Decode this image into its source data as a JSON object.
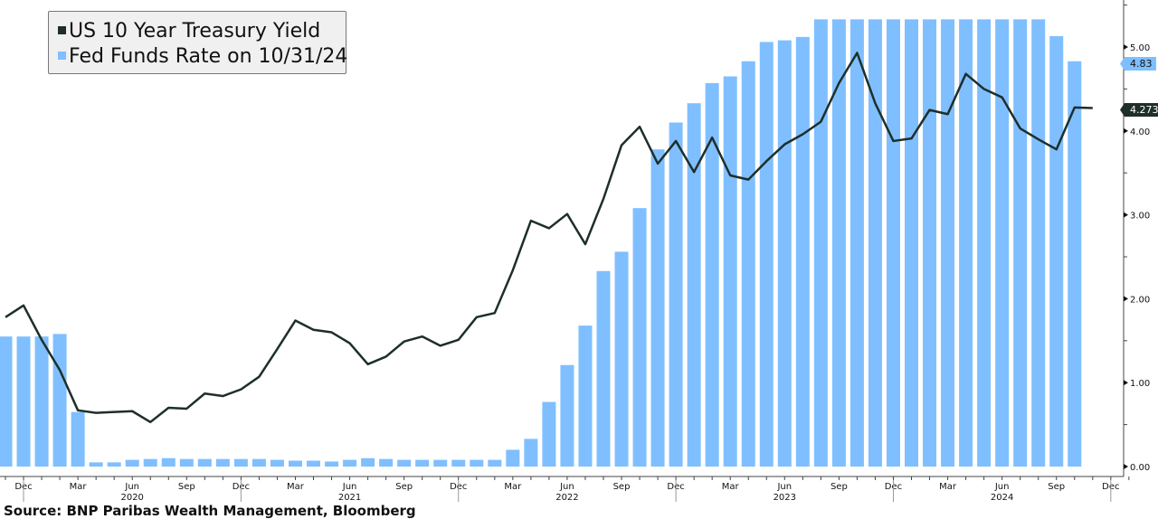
{
  "legend": {
    "line_label": "US 10 Year Treasury Yield",
    "bar_label": "Fed Funds Rate on 10/31/24"
  },
  "source": "Source: BNP Paribas Wealth Management, Bloomberg",
  "colors": {
    "line": "#1e2f2a",
    "bar": "#7fbfff",
    "axis": "#555555"
  },
  "last_values": {
    "bar": "4.83",
    "line": "4.2732"
  },
  "chart_data": {
    "type": "bar+line",
    "start_month": "Nov 2019",
    "frequency": "monthly",
    "ylim": [
      0,
      5.5
    ],
    "y_ticks": [
      "0.00",
      "1.00",
      "2.00",
      "3.00",
      "4.00",
      "5.00"
    ],
    "x_tick_labels": [
      {
        "month_index": 1,
        "label": "Dec"
      },
      {
        "month_index": 4,
        "label": "Mar"
      },
      {
        "month_index": 7,
        "label": "Jun"
      },
      {
        "month_index": 10,
        "label": "Sep"
      },
      {
        "month_index": 13,
        "label": "Dec"
      },
      {
        "month_index": 16,
        "label": "Mar"
      },
      {
        "month_index": 19,
        "label": "Jun"
      },
      {
        "month_index": 22,
        "label": "Sep"
      },
      {
        "month_index": 25,
        "label": "Dec"
      },
      {
        "month_index": 28,
        "label": "Mar"
      },
      {
        "month_index": 31,
        "label": "Jun"
      },
      {
        "month_index": 34,
        "label": "Sep"
      },
      {
        "month_index": 37,
        "label": "Dec"
      },
      {
        "month_index": 40,
        "label": "Mar"
      },
      {
        "month_index": 43,
        "label": "Jun"
      },
      {
        "month_index": 46,
        "label": "Sep"
      },
      {
        "month_index": 49,
        "label": "Dec"
      },
      {
        "month_index": 52,
        "label": "Mar"
      },
      {
        "month_index": 55,
        "label": "Jun"
      },
      {
        "month_index": 58,
        "label": "Sep"
      },
      {
        "month_index": 61,
        "label": "Dec"
      }
    ],
    "year_labels": [
      {
        "month_index": 7,
        "label": "2020"
      },
      {
        "month_index": 19,
        "label": "2021"
      },
      {
        "month_index": 31,
        "label": "2022"
      },
      {
        "month_index": 43,
        "label": "2023"
      },
      {
        "month_index": 55,
        "label": "2024"
      }
    ],
    "series": [
      {
        "name": "Fed Funds Rate on 10/31/24",
        "kind": "bar",
        "values": [
          1.55,
          1.55,
          1.55,
          1.58,
          0.65,
          0.05,
          0.05,
          0.08,
          0.09,
          0.1,
          0.09,
          0.09,
          0.09,
          0.09,
          0.09,
          0.08,
          0.07,
          0.07,
          0.06,
          0.08,
          0.1,
          0.09,
          0.08,
          0.08,
          0.08,
          0.08,
          0.08,
          0.08,
          0.2,
          0.33,
          0.77,
          1.21,
          1.68,
          2.33,
          2.56,
          3.08,
          3.78,
          4.1,
          4.33,
          4.57,
          4.65,
          4.83,
          5.06,
          5.08,
          5.12,
          5.33,
          5.33,
          5.33,
          5.33,
          5.33,
          5.33,
          5.33,
          5.33,
          5.33,
          5.33,
          5.33,
          5.33,
          5.33,
          5.13,
          4.83
        ]
      },
      {
        "name": "US 10 Year Treasury Yield",
        "kind": "line",
        "values": [
          1.78,
          1.92,
          1.51,
          1.15,
          0.67,
          0.64,
          0.65,
          0.66,
          0.53,
          0.7,
          0.69,
          0.87,
          0.84,
          0.92,
          1.07,
          1.4,
          1.74,
          1.63,
          1.6,
          1.47,
          1.22,
          1.31,
          1.49,
          1.55,
          1.44,
          1.51,
          1.78,
          1.83,
          2.34,
          2.93,
          2.84,
          3.01,
          2.65,
          3.19,
          3.83,
          4.05,
          3.61,
          3.88,
          3.51,
          3.92,
          3.47,
          3.42,
          3.64,
          3.84,
          3.96,
          4.11,
          4.57,
          4.93,
          4.33,
          3.88,
          3.91,
          4.25,
          4.2,
          4.68,
          4.5,
          4.4,
          4.03,
          3.9,
          3.78,
          4.28,
          4.2732
        ]
      }
    ]
  }
}
